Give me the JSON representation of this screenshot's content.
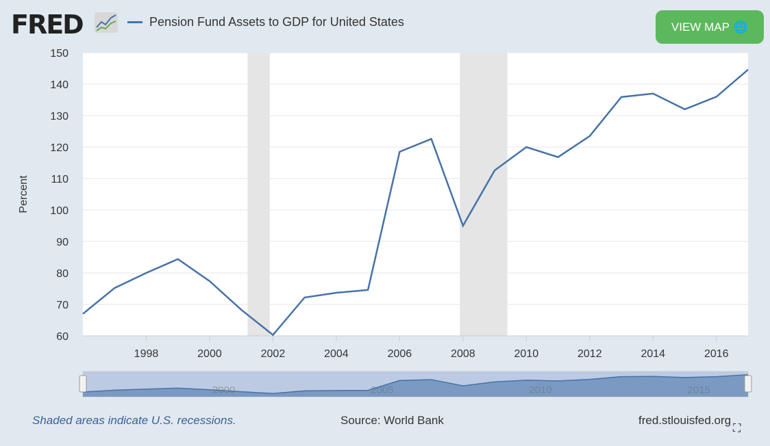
{
  "header": {
    "logo": "FRED",
    "view_map": "VIEW MAP"
  },
  "footer": {
    "note": "Shaded areas indicate U.S. recessions.",
    "source": "Source: World Bank",
    "site": "fred.stlouisfed.org"
  },
  "colors": {
    "line": "#4572a7",
    "recession": "#e5e5e5",
    "button": "#5cb85c"
  },
  "chart_data": {
    "type": "line",
    "title": "Pension Fund Assets to GDP for United States",
    "xlabel": "",
    "ylabel": "Percent",
    "xlim": [
      1996,
      2017
    ],
    "ylim": [
      60,
      150
    ],
    "yticks": [
      60,
      70,
      80,
      90,
      100,
      110,
      120,
      130,
      140,
      150
    ],
    "xticks": [
      1998,
      2000,
      2002,
      2004,
      2006,
      2008,
      2010,
      2012,
      2014,
      2016
    ],
    "navigator_ticks": [
      2000,
      2005,
      2010,
      2015
    ],
    "recessions": [
      [
        2001.2,
        2001.9
      ],
      [
        2007.9,
        2009.4
      ]
    ],
    "series": [
      {
        "name": "Pension Fund Assets to GDP for United States",
        "x": [
          1996,
          1997,
          1998,
          1999,
          2000,
          2001,
          2002,
          2003,
          2004,
          2005,
          2006,
          2007,
          2008,
          2009,
          2010,
          2011,
          2012,
          2013,
          2014,
          2015,
          2016,
          2017
        ],
        "values": [
          67,
          75.2,
          80,
          84.4,
          77.4,
          68.3,
          60.3,
          72.2,
          73.7,
          74.6,
          118.5,
          122.6,
          95,
          112.6,
          120,
          116.8,
          123.5,
          135.9,
          137,
          132,
          136,
          144.6
        ]
      }
    ],
    "grid": true,
    "legend": "top-left"
  }
}
